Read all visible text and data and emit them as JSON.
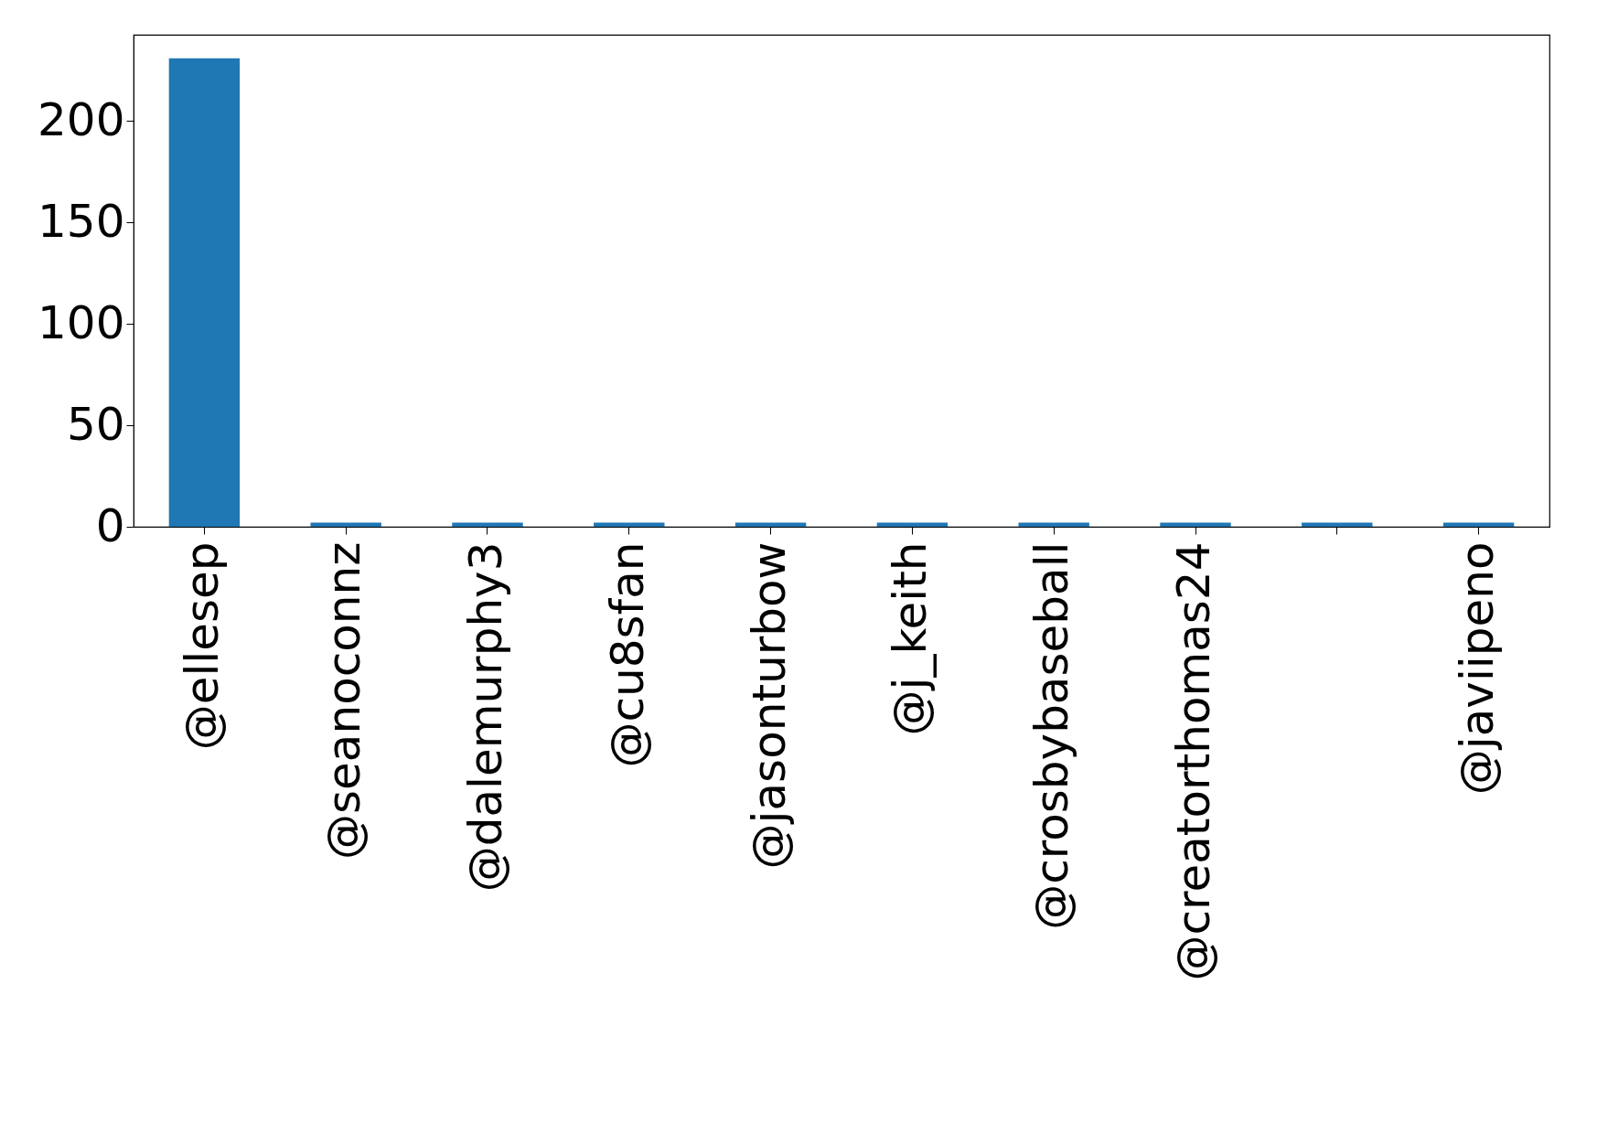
{
  "chart_data": {
    "type": "bar",
    "categories": [
      "@ellesep",
      "@seanoconnz",
      "@dalemurphy3",
      "@cu8sfan",
      "@jasonturbow",
      "@j_keith",
      "@crosbybaseball",
      "@creatorthomas24",
      null,
      "@javiipeno"
    ],
    "values": [
      231,
      2,
      2,
      2,
      2,
      2,
      2,
      2,
      2,
      2
    ],
    "color": "#1f77b4",
    "ylim": [
      0,
      242.6
    ],
    "yticks": [
      0,
      50,
      100,
      150,
      200
    ],
    "grid": false
  }
}
